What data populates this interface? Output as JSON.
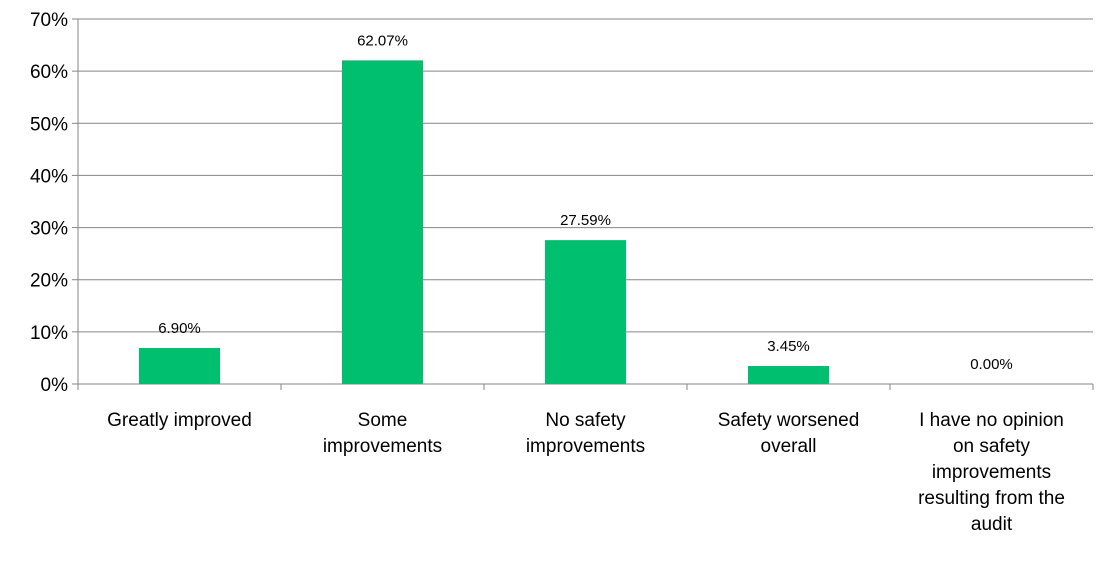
{
  "chart_data": {
    "type": "bar",
    "title": "",
    "xlabel": "",
    "ylabel": "",
    "categories": [
      [
        "Greatly improved"
      ],
      [
        "Some",
        "improvements"
      ],
      [
        "No safety",
        "improvements"
      ],
      [
        "Safety worsened",
        "overall"
      ],
      [
        "I have no opinion",
        "on safety",
        "improvements",
        "resulting from the",
        "audit"
      ]
    ],
    "values": [
      6.9,
      62.07,
      27.59,
      3.45,
      0.0
    ],
    "data_labels": [
      "6.90%",
      "62.07%",
      "27.59%",
      "3.45%",
      "0.00%"
    ],
    "y_ticks": [
      0,
      10,
      20,
      30,
      40,
      50,
      60,
      70
    ],
    "y_tick_labels": [
      "0%",
      "10%",
      "20%",
      "30%",
      "40%",
      "50%",
      "60%",
      "70%"
    ],
    "ylim": [
      0,
      70
    ],
    "grid": true,
    "legend": "none",
    "colors": {
      "bar": "#00BF6F",
      "grid": "#868686",
      "axis": "#868686",
      "text": "#000000"
    }
  }
}
